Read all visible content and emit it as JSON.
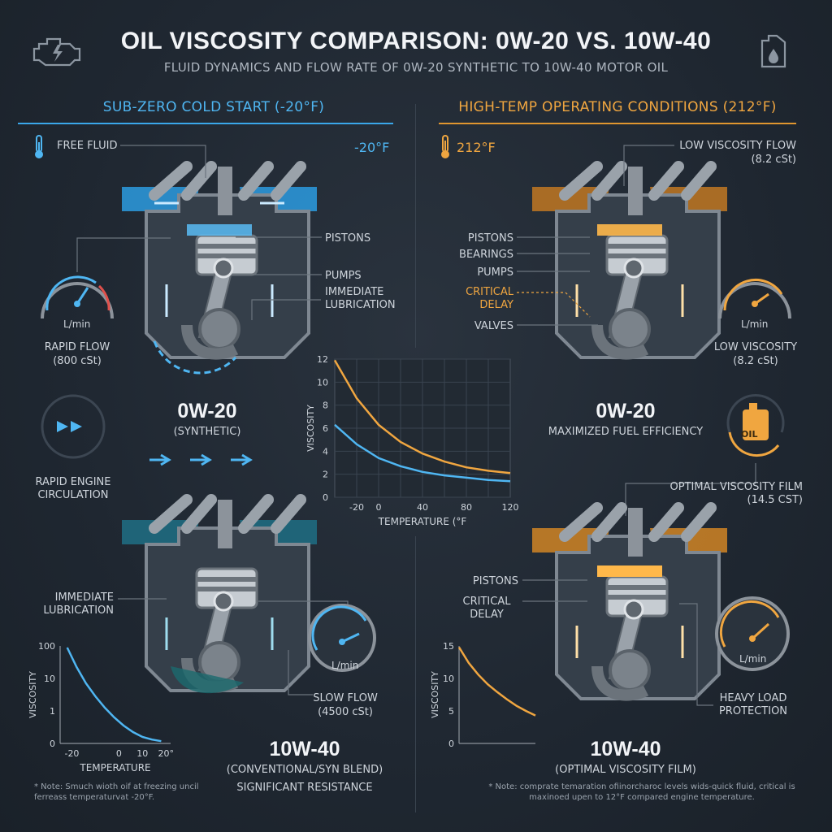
{
  "header": {
    "title": "OIL VISCOSITY COMPARISON: 0W-20 VS. 10W-40",
    "subtitle": "FLUID DYNAMICS AND FLOW RATE OF 0W-20 SYNTHETIC TO 10W-40 MOTOR OIL",
    "left_icon": "engine-warning-icon",
    "right_icon": "oil-jug-icon"
  },
  "colors": {
    "cold": "#4fb6f2",
    "hot": "#f0a640",
    "background": "#1f2731",
    "engine": "#8c939b"
  },
  "cold": {
    "heading": "SUB-ZERO COLD START (-20°F)",
    "thermometer_label": "FREE FLUID",
    "temp_value": "-20°F",
    "engine_top": {
      "pistons": "PISTONS",
      "pumps": "PUMPS",
      "lubrication": "IMMEDIATE LUBRICATION"
    },
    "gauge_unit": "L/min",
    "flow_label": "RAPID FLOW",
    "flow_value": "(800 cSt)",
    "oil_name": "0W-20",
    "oil_type": "(SYNTHETIC)",
    "circulation_label": "RAPID ENGINE CIRCULATION",
    "engine_bottom": {
      "lubrication": "IMMEDIATE LUBRICATION",
      "flow": "SLOW FLOW",
      "flow_value": "(4500 cSt)"
    },
    "gauge2_unit": "L/min",
    "oil2_name": "10W-40",
    "oil2_type": "(CONVENTIONAL/SYN BLEND)",
    "oil2_note": "SIGNIFICANT RESISTANCE",
    "footnote": "* Note: Smuch wioth oif at freezing uncil ferreass temperaturvat -20°F."
  },
  "hot": {
    "heading": "HIGH-TEMP OPERATING CONDITIONS (212°F)",
    "temp_value": "212°F",
    "low_flow_label": "LOW VISCOSITY FLOW",
    "low_flow_value": "(8.2 cSt)",
    "engine_top": {
      "pistons": "PISTONS",
      "bearings": "BEARINGS",
      "pumps": "PUMPS",
      "critical_delay": "CRITICAL DELAY",
      "valves": "VALVES"
    },
    "gauge_unit": "L/min",
    "gauge_label": "LOW VISCOSITY",
    "gauge_value": "(8.2 cSt)",
    "oil_name": "0W-20",
    "oil_note": "MAXIMIZED FUEL EFFICIENCY",
    "oil_badge": "OIL",
    "film_label": "OPTIMAL VISCOSITY FILM (14.5 cSt)",
    "engine_bottom": {
      "pistons": "PISTONS",
      "critical_delay": "CRITICAL DELAY",
      "heavy_load": "HEAVY LOAD PROTECTION"
    },
    "gauge2_unit": "L/min",
    "oil2_name": "10W-40",
    "oil2_type": "(OPTIMAL VISCOSITY FILM)",
    "footnote": "* Note: comprate temaration ofiinorcharoc levels wids-quick fluid, critical is maxinoed upen to 12°F compared engine temperature."
  },
  "chart_data": [
    {
      "type": "line",
      "title": "",
      "xlabel": "TEMPERATURE (°F",
      "ylabel": "VISCOSITY",
      "xlim": [
        -40,
        120
      ],
      "ylim": [
        0,
        12
      ],
      "xticks": [
        -20,
        0,
        40,
        80,
        120
      ],
      "xtick_positions": [
        -20,
        0,
        40,
        80,
        120
      ],
      "yticks": [
        0,
        2,
        4,
        6,
        8,
        10,
        12
      ],
      "grid": true,
      "series": [
        {
          "color": "#f0a640",
          "x": [
            -40,
            -20,
            0,
            20,
            40,
            60,
            80,
            100,
            120
          ],
          "y": [
            11.9,
            8.6,
            6.3,
            4.8,
            3.8,
            3.1,
            2.6,
            2.3,
            2.1
          ]
        },
        {
          "color": "#4fb6f2",
          "x": [
            -40,
            -20,
            0,
            20,
            40,
            60,
            80,
            100,
            120
          ],
          "y": [
            6.3,
            4.6,
            3.4,
            2.7,
            2.2,
            1.9,
            1.7,
            1.5,
            1.4
          ]
        }
      ]
    },
    {
      "type": "line",
      "title": "",
      "xlabel": "TEMPERATURE",
      "ylabel": "VISCOSITY",
      "xlim": [
        -25,
        22
      ],
      "yticks_labels": [
        "0",
        "1",
        "10",
        "100"
      ],
      "xticks_labels": [
        "-20",
        "0",
        "10",
        "20°"
      ],
      "grid": false,
      "series": [
        {
          "color": "#4fb6f2",
          "x": [
            -22,
            -18,
            -14,
            -10,
            -6,
            -2,
            2,
            6,
            10,
            14,
            18
          ],
          "y_level": [
            2.95,
            2.35,
            1.85,
            1.45,
            1.1,
            0.8,
            0.55,
            0.35,
            0.2,
            0.12,
            0.07
          ]
        }
      ]
    },
    {
      "type": "line",
      "title": "",
      "xlabel": "",
      "ylabel": "VISCOSITY",
      "ylim": [
        0,
        15
      ],
      "yticks": [
        0,
        5,
        10,
        15
      ],
      "grid": false,
      "series": [
        {
          "color": "#f0a640",
          "x": [
            0,
            1,
            2,
            3,
            4,
            5,
            6,
            7,
            8
          ],
          "y": [
            14.8,
            12.4,
            10.6,
            9.1,
            7.9,
            6.8,
            5.8,
            5.0,
            4.3
          ]
        }
      ]
    }
  ]
}
